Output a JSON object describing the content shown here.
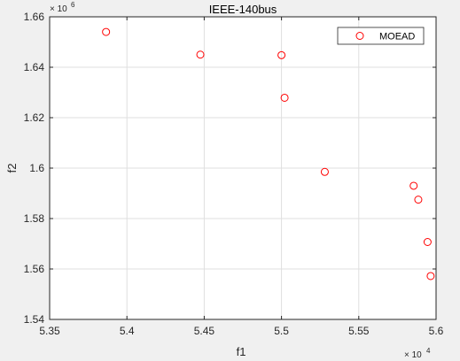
{
  "chart_data": {
    "type": "scatter",
    "title": "IEEE-140bus",
    "xlabel": "f1",
    "ylabel": "f2",
    "x_exponent": {
      "base": "× 10",
      "power": "4"
    },
    "y_exponent": {
      "base": "× 10",
      "power": "6"
    },
    "xlim": [
      5.35,
      5.6
    ],
    "ylim": [
      1.54,
      1.66
    ],
    "xticks": [
      5.35,
      5.4,
      5.45,
      5.5,
      5.55,
      5.6
    ],
    "xtick_labels": [
      "5.35",
      "5.4",
      "5.45",
      "5.5",
      "5.55",
      "5.6"
    ],
    "yticks": [
      1.54,
      1.56,
      1.58,
      1.6,
      1.62,
      1.64,
      1.66
    ],
    "ytick_labels": [
      "1.54",
      "1.56",
      "1.58",
      "1.6",
      "1.62",
      "1.64",
      "1.66"
    ],
    "grid": true,
    "legend_position": "top-right",
    "series": [
      {
        "name": "MOEAD",
        "marker": "circle",
        "color": "#ff0000",
        "points": [
          [
            5.3865,
            1.654
          ],
          [
            5.4475,
            1.645
          ],
          [
            5.5,
            1.6448
          ],
          [
            5.502,
            1.6279
          ],
          [
            5.528,
            1.5985
          ],
          [
            5.5855,
            1.593
          ],
          [
            5.5885,
            1.5875
          ],
          [
            5.5945,
            1.5707
          ],
          [
            5.5965,
            1.5572
          ]
        ]
      }
    ]
  },
  "colors": {
    "background": "#f0f0f0",
    "plot_area": "#ffffff",
    "axis": "#262626",
    "grid": "#dfdfdf"
  }
}
